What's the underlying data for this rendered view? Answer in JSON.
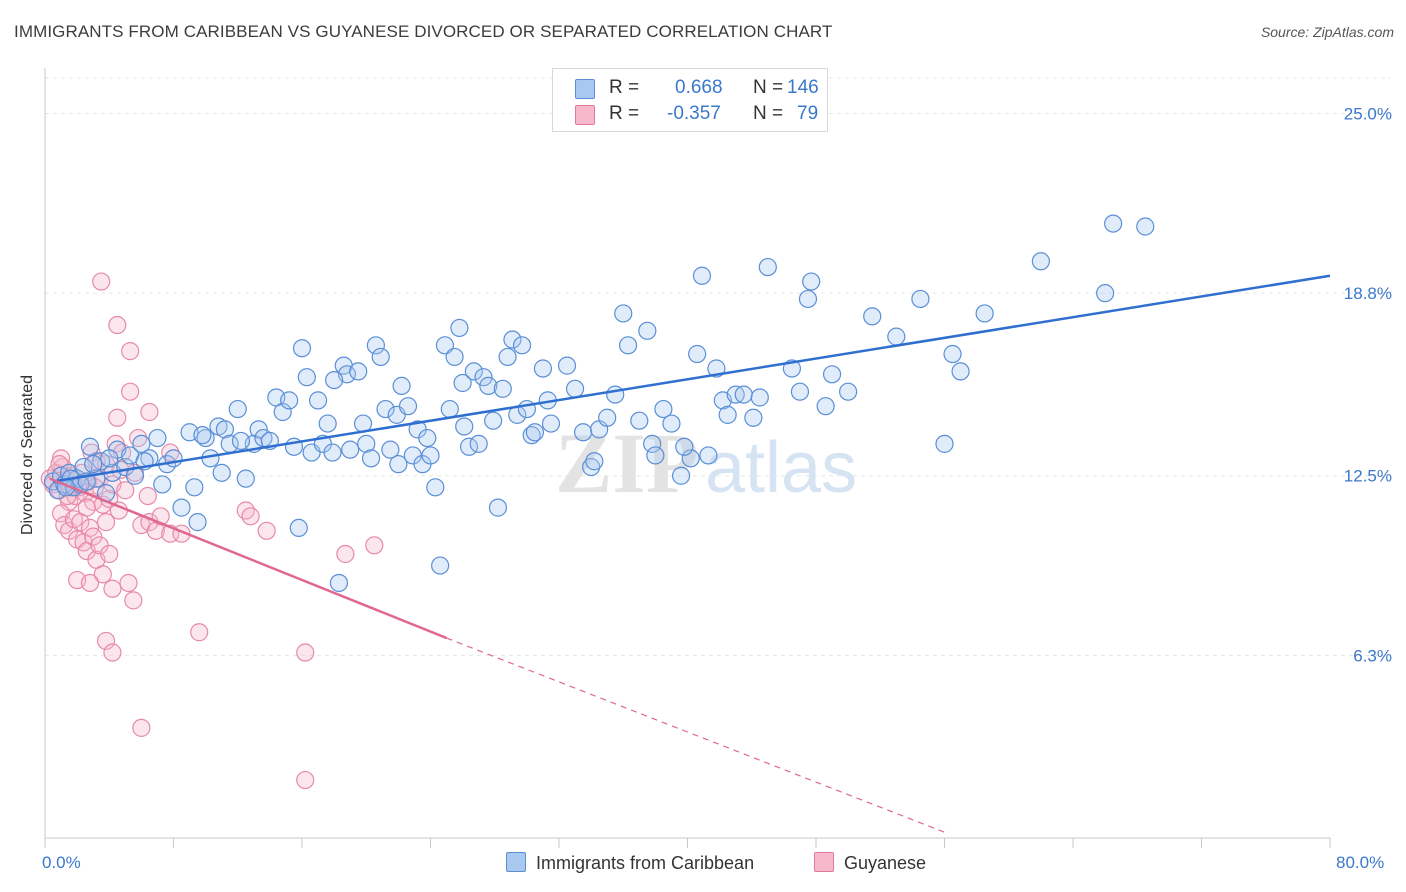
{
  "title": "IMMIGRANTS FROM CARIBBEAN VS GUYANESE DIVORCED OR SEPARATED CORRELATION CHART",
  "source": "Source: ZipAtlas.com",
  "watermark": {
    "zip": "ZIP",
    "atlas": "atlas"
  },
  "legend": {
    "r_label": "R =",
    "n_label": "N =",
    "rows": [
      {
        "r": "0.668",
        "n": "146",
        "color": "#a8c8f0",
        "border": "#5a8fd6"
      },
      {
        "r": "-0.357",
        "n": "79",
        "color": "#f7b8cc",
        "border": "#e07a9c"
      }
    ]
  },
  "bottom_legend": [
    {
      "label": "Immigrants from Caribbean",
      "color": "#a8c8f0",
      "border": "#5a8fd6"
    },
    {
      "label": "Guyanese",
      "color": "#f7b8cc",
      "border": "#e07a9c"
    }
  ],
  "chart_data": {
    "type": "scatter",
    "ylabel": "Divorced or Separated",
    "xlim": [
      0,
      80
    ],
    "ylim": [
      0,
      26.5
    ],
    "x_tick_labels": [
      {
        "value": 0,
        "label": "0.0%"
      },
      {
        "value": 80,
        "label": "80.0%"
      }
    ],
    "y_tick_labels": [
      {
        "value": 6.3,
        "label": "6.3%"
      },
      {
        "value": 12.5,
        "label": "12.5%"
      },
      {
        "value": 18.8,
        "label": "18.8%"
      },
      {
        "value": 25.0,
        "label": "25.0%"
      }
    ],
    "colors": {
      "blue": "#5a8fd6",
      "blue_line": "#2f6fd0",
      "pink": "#e889a8",
      "pink_line": "#e0678f"
    },
    "series": [
      {
        "name": "Immigrants from Caribbean",
        "trend": {
          "x0": 0.5,
          "y0": 12.3,
          "x1": 80,
          "y1": 19.4
        },
        "points": [
          [
            0.5,
            12.3
          ],
          [
            0.8,
            12.0
          ],
          [
            1.0,
            12.5
          ],
          [
            1.2,
            12.2
          ],
          [
            1.5,
            12.6
          ],
          [
            1.8,
            12.1
          ],
          [
            2.0,
            12.4
          ],
          [
            2.4,
            12.8
          ],
          [
            2.8,
            13.5
          ],
          [
            3.2,
            12.4
          ],
          [
            3.5,
            13.0
          ],
          [
            3.8,
            11.9
          ],
          [
            4.2,
            12.6
          ],
          [
            4.5,
            13.4
          ],
          [
            5.0,
            12.8
          ],
          [
            5.3,
            13.2
          ],
          [
            5.6,
            12.5
          ],
          [
            6.0,
            13.6
          ],
          [
            6.5,
            13.1
          ],
          [
            7.0,
            13.8
          ],
          [
            7.3,
            12.2
          ],
          [
            7.6,
            12.9
          ],
          [
            8.0,
            13.1
          ],
          [
            8.5,
            11.4
          ],
          [
            9.0,
            14.0
          ],
          [
            9.3,
            12.1
          ],
          [
            9.5,
            10.9
          ],
          [
            10.0,
            13.8
          ],
          [
            10.3,
            13.1
          ],
          [
            10.8,
            14.2
          ],
          [
            11.0,
            12.6
          ],
          [
            11.2,
            14.1
          ],
          [
            11.5,
            13.6
          ],
          [
            12.0,
            14.8
          ],
          [
            12.5,
            12.4
          ],
          [
            13.0,
            13.6
          ],
          [
            13.3,
            14.1
          ],
          [
            13.6,
            13.8
          ],
          [
            14.0,
            13.7
          ],
          [
            14.4,
            15.2
          ],
          [
            14.8,
            14.7
          ],
          [
            15.2,
            15.1
          ],
          [
            15.5,
            13.5
          ],
          [
            15.8,
            10.7
          ],
          [
            16.0,
            16.9
          ],
          [
            16.3,
            15.9
          ],
          [
            16.6,
            13.3
          ],
          [
            17.0,
            15.1
          ],
          [
            17.3,
            13.6
          ],
          [
            17.6,
            14.3
          ],
          [
            17.9,
            13.3
          ],
          [
            18.3,
            8.8
          ],
          [
            18.6,
            16.3
          ],
          [
            18.8,
            16.0
          ],
          [
            19.0,
            13.4
          ],
          [
            19.5,
            16.1
          ],
          [
            19.8,
            14.3
          ],
          [
            20.0,
            13.6
          ],
          [
            20.3,
            13.1
          ],
          [
            20.6,
            17.0
          ],
          [
            20.9,
            16.6
          ],
          [
            21.2,
            14.8
          ],
          [
            21.5,
            13.4
          ],
          [
            21.9,
            14.6
          ],
          [
            22.2,
            15.6
          ],
          [
            22.6,
            14.9
          ],
          [
            22.9,
            13.2
          ],
          [
            23.2,
            14.1
          ],
          [
            23.5,
            12.9
          ],
          [
            23.8,
            13.8
          ],
          [
            24.0,
            13.2
          ],
          [
            24.3,
            12.1
          ],
          [
            24.6,
            9.4
          ],
          [
            24.9,
            17.0
          ],
          [
            25.2,
            14.8
          ],
          [
            25.5,
            16.6
          ],
          [
            25.8,
            17.6
          ],
          [
            26.1,
            14.2
          ],
          [
            26.4,
            13.5
          ],
          [
            26.7,
            16.1
          ],
          [
            27.0,
            13.6
          ],
          [
            27.3,
            15.9
          ],
          [
            27.6,
            15.6
          ],
          [
            27.9,
            14.4
          ],
          [
            28.2,
            11.4
          ],
          [
            28.5,
            15.5
          ],
          [
            28.8,
            16.6
          ],
          [
            29.1,
            17.2
          ],
          [
            29.4,
            14.6
          ],
          [
            29.7,
            17.0
          ],
          [
            30.0,
            14.8
          ],
          [
            30.3,
            13.9
          ],
          [
            31.0,
            16.2
          ],
          [
            31.3,
            15.1
          ],
          [
            31.5,
            14.3
          ],
          [
            32.5,
            16.3
          ],
          [
            33.0,
            15.5
          ],
          [
            33.5,
            14.0
          ],
          [
            34.0,
            12.8
          ],
          [
            34.5,
            14.1
          ],
          [
            35.0,
            14.5
          ],
          [
            35.5,
            15.3
          ],
          [
            36.0,
            18.1
          ],
          [
            36.3,
            17.0
          ],
          [
            37.0,
            14.4
          ],
          [
            37.5,
            17.5
          ],
          [
            37.8,
            13.6
          ],
          [
            38.0,
            13.2
          ],
          [
            38.5,
            14.8
          ],
          [
            39.0,
            14.3
          ],
          [
            39.6,
            12.5
          ],
          [
            40.2,
            13.1
          ],
          [
            40.6,
            16.7
          ],
          [
            40.9,
            19.4
          ],
          [
            41.3,
            13.2
          ],
          [
            41.8,
            16.2
          ],
          [
            42.2,
            15.1
          ],
          [
            42.5,
            14.6
          ],
          [
            43.0,
            15.3
          ],
          [
            43.5,
            15.3
          ],
          [
            44.1,
            14.5
          ],
          [
            45.0,
            19.7
          ],
          [
            46.5,
            16.2
          ],
          [
            47.0,
            15.4
          ],
          [
            47.5,
            18.6
          ],
          [
            47.7,
            19.2
          ],
          [
            48.6,
            14.9
          ],
          [
            49.0,
            16.0
          ],
          [
            50.0,
            15.4
          ],
          [
            51.5,
            18.0
          ],
          [
            53.0,
            17.3
          ],
          [
            54.5,
            18.6
          ],
          [
            56.0,
            13.6
          ],
          [
            56.5,
            16.7
          ],
          [
            57.0,
            16.1
          ],
          [
            58.5,
            18.1
          ],
          [
            62.0,
            19.9
          ],
          [
            66.0,
            18.8
          ],
          [
            66.5,
            21.2
          ],
          [
            68.5,
            21.1
          ],
          [
            1.6,
            12.4
          ],
          [
            2.2,
            12.2
          ],
          [
            3.0,
            12.9
          ],
          [
            4.0,
            13.1
          ],
          [
            6.2,
            13.0
          ],
          [
            9.8,
            13.9
          ],
          [
            12.2,
            13.7
          ],
          [
            18.0,
            15.8
          ],
          [
            22.0,
            12.9
          ],
          [
            26.0,
            15.7
          ],
          [
            30.5,
            14.0
          ],
          [
            34.2,
            13.0
          ],
          [
            39.8,
            13.5
          ],
          [
            44.5,
            15.2
          ],
          [
            1.3,
            12.1
          ],
          [
            2.6,
            12.3
          ]
        ]
      },
      {
        "name": "Guyanese",
        "trend": {
          "x0": 0.3,
          "y0": 12.4,
          "x1": 25,
          "y1": 6.9,
          "dash_x1": 56,
          "dash_y1": 0.2
        },
        "points": [
          [
            0.3,
            12.4
          ],
          [
            0.5,
            12.2
          ],
          [
            0.7,
            12.6
          ],
          [
            0.9,
            12.0
          ],
          [
            1.1,
            12.8
          ],
          [
            1.3,
            12.3
          ],
          [
            1.5,
            11.6
          ],
          [
            1.7,
            12.5
          ],
          [
            1.9,
            11.8
          ],
          [
            2.1,
            12.1
          ],
          [
            2.3,
            12.6
          ],
          [
            2.5,
            11.9
          ],
          [
            2.7,
            12.3
          ],
          [
            2.9,
            13.3
          ],
          [
            3.0,
            11.6
          ],
          [
            3.2,
            13.0
          ],
          [
            3.4,
            12.4
          ],
          [
            3.6,
            11.5
          ],
          [
            3.8,
            12.9
          ],
          [
            4.0,
            11.7
          ],
          [
            4.2,
            12.2
          ],
          [
            4.4,
            13.6
          ],
          [
            4.6,
            11.3
          ],
          [
            4.8,
            13.3
          ],
          [
            5.0,
            12.0
          ],
          [
            1.0,
            11.2
          ],
          [
            1.2,
            10.8
          ],
          [
            1.5,
            10.6
          ],
          [
            1.8,
            11.0
          ],
          [
            2.0,
            10.3
          ],
          [
            2.2,
            10.9
          ],
          [
            2.4,
            10.2
          ],
          [
            2.6,
            9.9
          ],
          [
            2.8,
            10.7
          ],
          [
            3.0,
            10.4
          ],
          [
            3.2,
            9.6
          ],
          [
            3.4,
            10.1
          ],
          [
            3.6,
            9.1
          ],
          [
            3.8,
            10.9
          ],
          [
            4.0,
            9.8
          ],
          [
            2.0,
            8.9
          ],
          [
            2.8,
            8.8
          ],
          [
            4.2,
            8.6
          ],
          [
            5.2,
            8.8
          ],
          [
            5.5,
            8.2
          ],
          [
            4.5,
            14.5
          ],
          [
            5.3,
            15.4
          ],
          [
            5.8,
            13.8
          ],
          [
            6.5,
            14.7
          ],
          [
            7.8,
            13.3
          ],
          [
            6.0,
            10.8
          ],
          [
            6.5,
            10.9
          ],
          [
            6.9,
            10.6
          ],
          [
            7.2,
            11.1
          ],
          [
            7.8,
            10.5
          ],
          [
            8.5,
            10.5
          ],
          [
            3.5,
            19.2
          ],
          [
            4.5,
            17.7
          ],
          [
            5.3,
            16.8
          ],
          [
            1.0,
            13.1
          ],
          [
            3.8,
            6.8
          ],
          [
            4.2,
            6.4
          ],
          [
            6.0,
            3.8
          ],
          [
            9.6,
            7.1
          ],
          [
            12.5,
            11.3
          ],
          [
            12.8,
            11.1
          ],
          [
            13.8,
            10.6
          ],
          [
            16.2,
            6.4
          ],
          [
            16.2,
            2.0
          ],
          [
            18.7,
            9.8
          ],
          [
            20.5,
            10.1
          ],
          [
            1.4,
            11.8
          ],
          [
            2.6,
            11.4
          ],
          [
            3.1,
            12.1
          ],
          [
            4.7,
            12.7
          ],
          [
            5.6,
            12.6
          ],
          [
            6.4,
            11.8
          ],
          [
            0.9,
            12.9
          ],
          [
            1.6,
            12.1
          ]
        ]
      }
    ]
  }
}
